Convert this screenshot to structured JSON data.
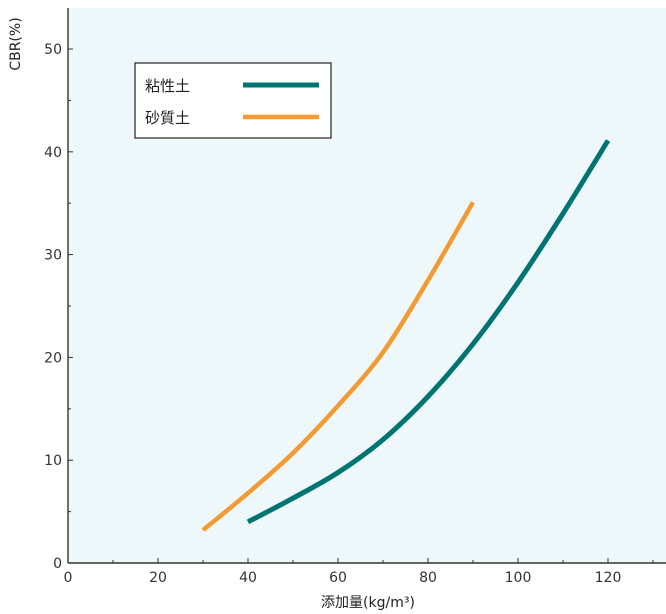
{
  "chart_data": {
    "type": "line",
    "title": "",
    "xlabel": "添加量(kg/m³)",
    "ylabel": "CBR(%)",
    "xlim": [
      0,
      130
    ],
    "ylim": [
      0,
      55
    ],
    "xticks": [
      0,
      20,
      40,
      60,
      80,
      100,
      120
    ],
    "yticks": [
      0,
      10,
      20,
      30,
      40,
      50
    ],
    "grid": false,
    "legend_position": "top-left",
    "series": [
      {
        "name": "粘性土",
        "color": "#007373",
        "x": [
          40,
          50,
          60,
          70,
          80,
          90,
          100,
          110,
          120
        ],
        "y": [
          4,
          6.3,
          8.8,
          12,
          16.2,
          21.3,
          27.3,
          34,
          41.1
        ]
      },
      {
        "name": "砂質土",
        "color": "#f39a33",
        "x": [
          30,
          40,
          50,
          60,
          70,
          80,
          90
        ],
        "y": [
          3.2,
          6.8,
          10.7,
          15.3,
          20.5,
          27.5,
          35.1
        ]
      }
    ]
  }
}
